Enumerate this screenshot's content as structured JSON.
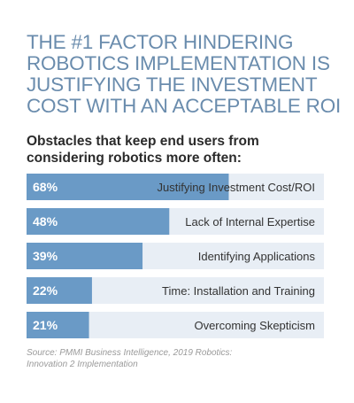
{
  "headline": [
    "THE #1 FACTOR HINDERING",
    "ROBOTICS IMPLEMENTATION IS",
    "JUSTIFYING THE INVESTMENT",
    "COST WITH AN ACCEPTABLE ROI"
  ],
  "colors": {
    "headline": "#6a8cad",
    "row_background": "#e8eef5",
    "bar": "#6a9ac6",
    "bar_label": "#ffffff",
    "category_label": "#333333"
  },
  "chart_data": {
    "type": "bar",
    "orientation": "horizontal",
    "title": "Obstacles that keep end users from considering robotics more often:",
    "title_lines": [
      "Obstacles that keep end users from",
      "considering robotics more often:"
    ],
    "categories": [
      "Justifying Investment Cost/ROI",
      "Lack of Internal Expertise",
      "Identifying Applications",
      "Time: Installation and Training",
      "Overcoming Skepticism"
    ],
    "values": [
      68,
      48,
      39,
      22,
      21
    ],
    "value_labels": [
      "68%",
      "48%",
      "39%",
      "22%",
      "21%"
    ],
    "unit": "%",
    "xlim": [
      0,
      100
    ],
    "grid": false,
    "legend": "none"
  },
  "source_lines": [
    "Source: PMMI Business Intelligence, 2019 Robotics:",
    "Innovation 2 Implementation"
  ]
}
